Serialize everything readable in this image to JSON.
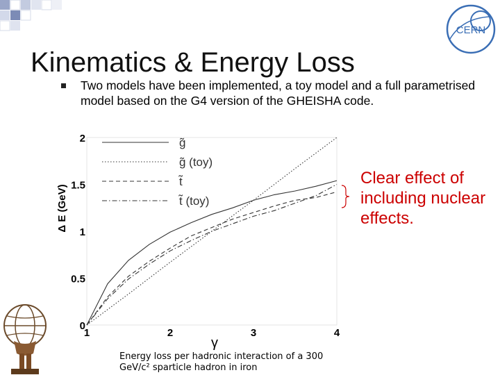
{
  "slide": {
    "title": "Kinematics & Energy Loss",
    "bullet": "Two models have been implemented, a toy model and a full parametrised model based on the G4 version of the GHEISHA code.",
    "callout": "Clear effect of including nuclear effects.",
    "caption": "Energy loss per hadronic interaction of a 300 GeV/c² sparticle hadron in iron"
  },
  "logos": {
    "top_right": "CERN",
    "bottom_left": "atlas-figure-icon",
    "top_left": "decorative-squares-icon"
  },
  "colors": {
    "callout": "#cc0000",
    "plot_line": "#333333"
  },
  "chart_data": {
    "type": "line",
    "xlabel": "γ",
    "ylabel": "Δ E (GeV)",
    "xlim": [
      1,
      4
    ],
    "ylim": [
      0,
      2
    ],
    "xticks": [
      "1",
      "2",
      "3",
      "4"
    ],
    "yticks": [
      "0",
      "0.5",
      "1",
      "1.5",
      "2"
    ],
    "legend_position": "top-left",
    "series": [
      {
        "name": "g̃",
        "style": "solid",
        "x": [
          1,
          1.25,
          1.5,
          1.75,
          2,
          2.25,
          2.5,
          2.75,
          3,
          3.25,
          3.5,
          3.75,
          4
        ],
        "y": [
          0,
          0.44,
          0.69,
          0.86,
          0.99,
          1.09,
          1.18,
          1.25,
          1.33,
          1.39,
          1.43,
          1.48,
          1.54
        ]
      },
      {
        "name": "g̃ (toy)",
        "style": "dotted",
        "x": [
          1,
          1.5,
          2,
          2.5,
          3,
          3.5,
          4
        ],
        "y": [
          0,
          0.33,
          0.67,
          1.0,
          1.33,
          1.67,
          2.0
        ]
      },
      {
        "name": "t̃",
        "style": "dashed",
        "x": [
          1,
          1.25,
          1.5,
          1.75,
          2,
          2.25,
          2.5,
          2.75,
          3,
          3.25,
          3.5,
          3.75,
          4
        ],
        "y": [
          0,
          0.3,
          0.52,
          0.68,
          0.82,
          0.95,
          1.04,
          1.13,
          1.2,
          1.27,
          1.33,
          1.36,
          1.42
        ]
      },
      {
        "name": "t̃ (toy)",
        "style": "dashdot",
        "x": [
          1,
          1.25,
          1.5,
          1.75,
          2,
          2.25,
          2.5,
          2.75,
          3,
          3.25,
          3.5,
          3.75,
          4
        ],
        "y": [
          0,
          0.28,
          0.49,
          0.65,
          0.79,
          0.9,
          1.0,
          1.08,
          1.16,
          1.22,
          1.3,
          1.38,
          1.5
        ]
      }
    ]
  }
}
